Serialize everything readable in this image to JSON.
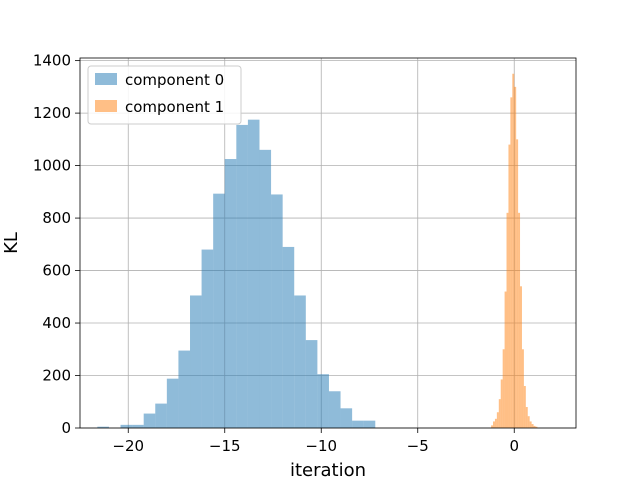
{
  "chart_data": {
    "type": "bar",
    "title": "",
    "xlabel": "iteration",
    "ylabel": "KL",
    "xlim": [
      -22.5,
      3.2
    ],
    "ylim": [
      0,
      1410
    ],
    "grid": true,
    "legend_position": "top-left",
    "x_ticks": [
      -20,
      -15,
      -10,
      -5,
      0
    ],
    "x_tick_labels": [
      "−20",
      "−15",
      "−10",
      "−5",
      "0"
    ],
    "y_ticks": [
      0,
      200,
      400,
      600,
      800,
      1000,
      1200,
      1400
    ],
    "y_tick_labels": [
      "0",
      "200",
      "400",
      "600",
      "800",
      "1000",
      "1200",
      "1400"
    ],
    "series": [
      {
        "name": "component 0",
        "color": "#1f77b4",
        "alpha": 0.5,
        "bin_edges": [
          -21.6,
          -21.0,
          -20.4,
          -19.8,
          -19.2,
          -18.6,
          -18.0,
          -17.4,
          -16.8,
          -16.2,
          -15.6,
          -15.0,
          -14.4,
          -13.8,
          -13.2,
          -12.6,
          -12.0,
          -11.4,
          -10.8,
          -10.2,
          -9.6,
          -9.0,
          -8.4,
          -7.8,
          -7.2
        ],
        "counts": [
          5,
          0,
          12,
          12,
          55,
          93,
          188,
          295,
          505,
          680,
          893,
          1025,
          1155,
          1175,
          1060,
          890,
          690,
          505,
          335,
          205,
          140,
          75,
          28,
          28
        ]
      },
      {
        "name": "component 1",
        "color": "#ff7f0e",
        "alpha": 0.5,
        "bin_edges": [
          -1.2,
          -1.1,
          -1.0,
          -0.9,
          -0.8,
          -0.7,
          -0.6,
          -0.5,
          -0.4,
          -0.3,
          -0.2,
          -0.1,
          0.0,
          0.1,
          0.2,
          0.3,
          0.4,
          0.5,
          0.6,
          0.7,
          0.8,
          0.9,
          1.0,
          1.1,
          1.2
        ],
        "counts": [
          10,
          25,
          35,
          60,
          110,
          185,
          300,
          520,
          820,
          1080,
          1260,
          1350,
          1300,
          1100,
          820,
          540,
          300,
          160,
          80,
          45,
          25,
          15,
          8,
          5
        ]
      }
    ]
  }
}
